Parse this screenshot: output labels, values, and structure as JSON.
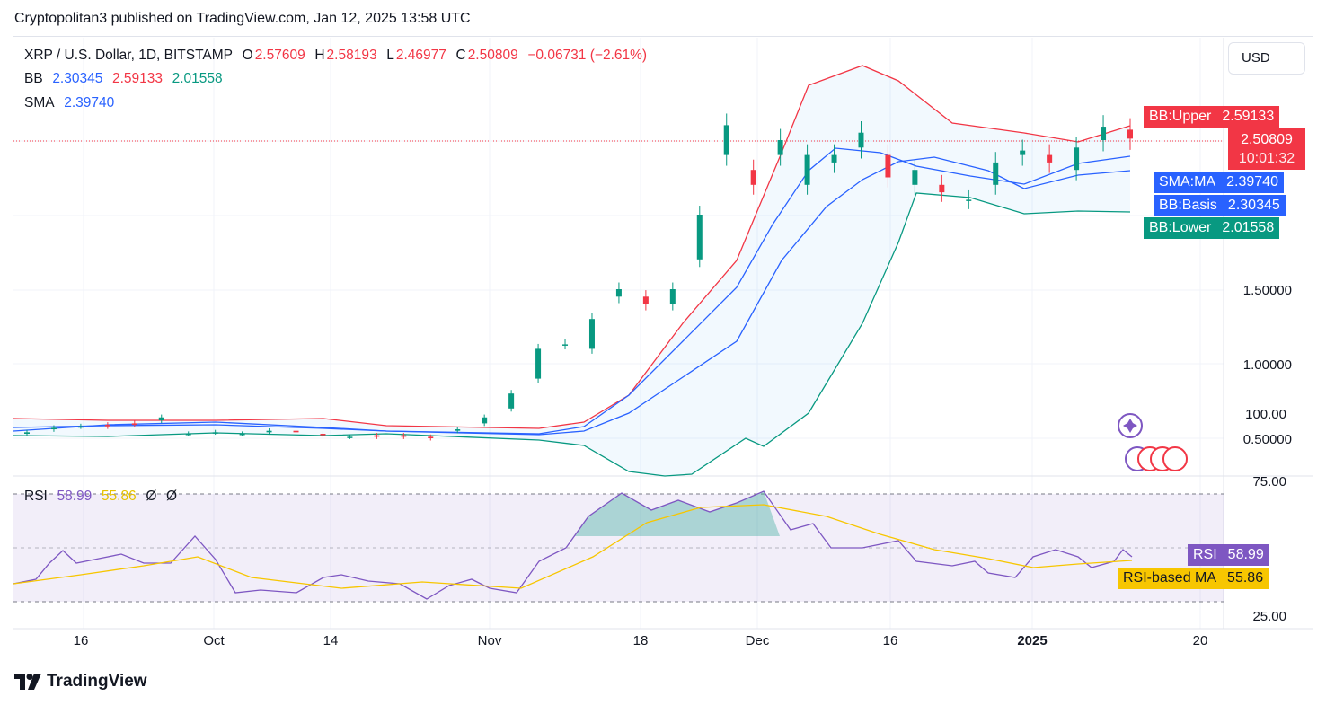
{
  "header": {
    "title": "Cryptopolitan3 published on TradingView.com, Jan 12, 2025 13:58 UTC"
  },
  "symbol": {
    "name": "XRP / U.S. Dollar, 1D, BITSTAMP",
    "o_label": "O",
    "o": "2.57609",
    "h_label": "H",
    "h": "2.58193",
    "l_label": "L",
    "l": "2.46977",
    "c_label": "C",
    "c": "2.50809",
    "change": "−0.06731 (−2.61%)"
  },
  "bb_legend": {
    "label": "BB",
    "basis": "2.30345",
    "upper": "2.59133",
    "lower": "2.01558"
  },
  "sma_legend": {
    "label": "SMA",
    "value": "2.39740"
  },
  "rsi_legend": {
    "label": "RSI",
    "rsi": "58.99",
    "ma": "55.86",
    "e1": "Ø",
    "e2": "Ø"
  },
  "currency_button": "USD",
  "badges": {
    "bb_upper": {
      "label": "BB:Upper",
      "value": "2.59133"
    },
    "price": {
      "value": "2.50809",
      "countdown": "10:01:32"
    },
    "sma": {
      "label": "SMA:MA",
      "value": "2.39740"
    },
    "bb_basis": {
      "label": "BB:Basis",
      "value": "2.30345"
    },
    "bb_lower": {
      "label": "BB:Lower",
      "value": "2.01558"
    },
    "rsi": {
      "label": "RSI",
      "value": "58.99"
    },
    "rsi_ma": {
      "label": "RSI-based MA",
      "value": "55.86"
    }
  },
  "footer": {
    "brand": "TradingView"
  },
  "colors": {
    "up": "#089981",
    "down": "#f23645",
    "bb_upper": "#f23645",
    "bb_lower": "#089981",
    "basis": "#2962ff",
    "sma": "#2962ff",
    "rsi": "#7e57c2",
    "rsi_ma": "#f7c600"
  },
  "chart_data": {
    "type": "candlestick",
    "price_axis_ticks": [
      "1.50000",
      "1.00000",
      "0.50000"
    ],
    "rsi_axis_ticks": [
      "100.00",
      "75.00",
      "25.00"
    ],
    "x_ticks": [
      "16",
      "Oct",
      "14",
      "Nov",
      "18",
      "Dec",
      "16",
      "2025",
      "20"
    ],
    "rsi_bands": [
      70,
      30
    ],
    "series": [
      {
        "name": "BB",
        "values": {
          "basis": 2.30345,
          "upper": 2.59133,
          "lower": 2.01558
        }
      },
      {
        "name": "SMA",
        "values": {
          "value": 2.3974
        }
      },
      {
        "name": "RSI",
        "values": {
          "rsi": 58.99,
          "ma": 55.86
        }
      }
    ],
    "price_path_approx": [
      [
        0.53,
        0.54
      ],
      [
        0.56,
        0.57
      ],
      [
        0.58,
        0.58
      ],
      [
        0.59,
        0.58
      ],
      [
        0.6,
        0.59
      ],
      [
        0.62,
        0.64
      ],
      [
        0.53,
        0.53
      ],
      [
        0.54,
        0.54
      ],
      [
        0.53,
        0.53
      ],
      [
        0.54,
        0.55
      ],
      [
        0.55,
        0.54
      ],
      [
        0.53,
        0.52
      ],
      [
        0.51,
        0.51
      ],
      [
        0.52,
        0.51
      ],
      [
        0.52,
        0.51
      ],
      [
        0.51,
        0.5
      ],
      [
        0.55,
        0.56
      ],
      [
        0.6,
        0.64
      ],
      [
        0.7,
        0.8
      ],
      [
        0.9,
        1.1
      ],
      [
        1.13,
        1.13
      ],
      [
        1.1,
        1.3
      ],
      [
        1.45,
        1.5
      ],
      [
        1.45,
        1.4
      ],
      [
        1.4,
        1.5
      ],
      [
        1.7,
        2.0
      ],
      [
        2.4,
        2.6
      ],
      [
        2.3,
        2.2
      ],
      [
        2.4,
        2.5
      ],
      [
        2.2,
        2.4
      ],
      [
        2.35,
        2.4
      ],
      [
        2.45,
        2.55
      ],
      [
        2.4,
        2.25
      ],
      [
        2.2,
        2.3
      ],
      [
        2.2,
        2.15
      ],
      [
        2.1,
        2.1
      ],
      [
        2.2,
        2.35
      ],
      [
        2.4,
        2.43
      ],
      [
        2.4,
        2.35
      ],
      [
        2.3,
        2.45
      ],
      [
        2.5,
        2.59
      ],
      [
        2.57,
        2.51
      ]
    ]
  }
}
